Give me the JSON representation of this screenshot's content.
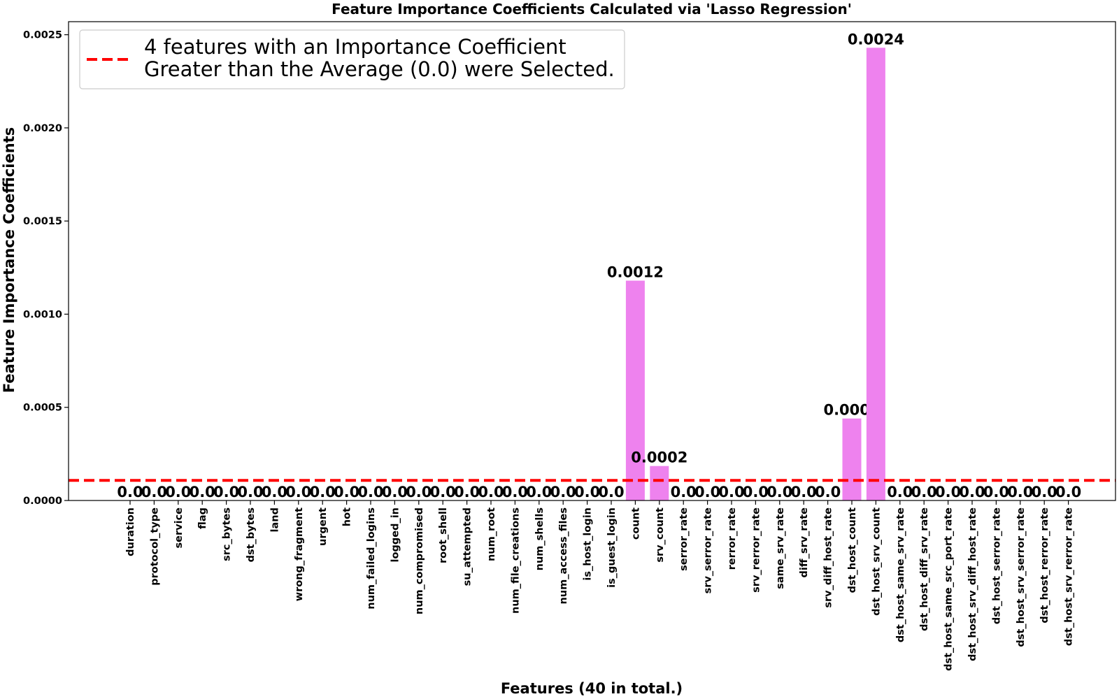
{
  "chart_data": {
    "type": "bar",
    "title": "Feature Importance Coefficients Calculated via 'Lasso Regression'",
    "xlabel": "Features (40 in total.)",
    "ylabel": "Feature Importance Coefficients",
    "ylim": [
      0,
      0.00257
    ],
    "yticks": [
      "0.0000",
      "0.0005",
      "0.0010",
      "0.0015",
      "0.0020",
      "0.0025"
    ],
    "ytick_values": [
      0,
      0.0005,
      0.001,
      0.0015,
      0.002,
      0.0025
    ],
    "bar_color": "#ee82ee",
    "categories": [
      "duration",
      "protocol_type",
      "service",
      "flag",
      "src_bytes",
      "dst_bytes",
      "land",
      "wrong_fragment",
      "urgent",
      "hot",
      "num_failed_logins",
      "logged_in",
      "num_compromised",
      "root_shell",
      "su_attempted",
      "num_root",
      "num_file_creations",
      "num_shells",
      "num_access_files",
      "is_host_login",
      "is_guest_login",
      "count",
      "srv_count",
      "serror_rate",
      "srv_serror_rate",
      "rerror_rate",
      "srv_rerror_rate",
      "same_srv_rate",
      "diff_srv_rate",
      "srv_diff_host_rate",
      "dst_host_count",
      "dst_host_srv_count",
      "dst_host_same_srv_rate",
      "dst_host_diff_srv_rate",
      "dst_host_same_src_port_rate",
      "dst_host_srv_diff_host_rate",
      "dst_host_serror_rate",
      "dst_host_srv_serror_rate",
      "dst_host_rerror_rate",
      "dst_host_srv_rerror_rate"
    ],
    "values": [
      0,
      0,
      0,
      0,
      0,
      0,
      0,
      0,
      0,
      0,
      0,
      0,
      0,
      0,
      0,
      0,
      0,
      0,
      0,
      0,
      0,
      0.00118,
      0.000185,
      0,
      0,
      0,
      0,
      0,
      0,
      0,
      0.00044,
      0.00243,
      0,
      0,
      0,
      0,
      0,
      0,
      0,
      0
    ],
    "data_labels": [
      "0.0",
      "0.0",
      "0.0",
      "0.0",
      "0.0",
      "0.0",
      "0.0",
      "0.0",
      "0.0",
      "0.0",
      "0.0",
      "0.0",
      "0.0",
      "0.0",
      "0.0",
      "0.0",
      "0.0",
      "0.0",
      "0.0",
      "0.0",
      "0.0",
      "0.0012",
      "0.0002",
      "0.0",
      "0.0",
      "0.0",
      "0.0",
      "0.0",
      "0.0",
      "0.0",
      "0.0004",
      "0.0024",
      "0.0",
      "0.0",
      "0.0",
      "0.0",
      "0.0",
      "0.0",
      "0.0",
      "0.0"
    ],
    "threshold": {
      "value": 0.000108,
      "color": "#ff0000",
      "style": "dashed",
      "legend_lines": [
        "4 features with an Importance Coefficient",
        "Greater than the Average (0.0) were Selected."
      ]
    },
    "legend_placement": "upper-left",
    "grid": false
  }
}
